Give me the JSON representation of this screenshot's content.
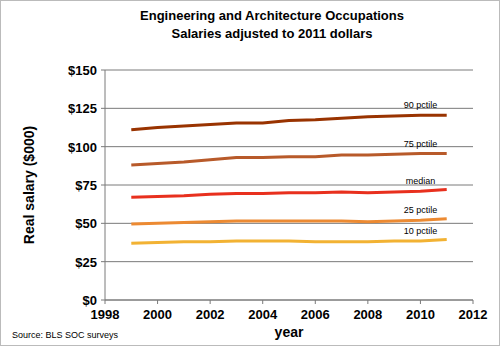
{
  "chart_data": {
    "type": "line",
    "title": [
      "Engineering and Architecture Occupations",
      "Salaries adjusted to 2011 dollars"
    ],
    "x_label": "year",
    "y_label": "Real salary ($000)",
    "annotations": [
      "Source: BLS SOC surveys"
    ],
    "x": [
      1999,
      2000,
      2001,
      2002,
      2003,
      2004,
      2005,
      2006,
      2007,
      2008,
      2009,
      2010,
      2011
    ],
    "series": [
      {
        "name": "90 pctile",
        "color": "#993300",
        "values": [
          111,
          112.5,
          113.5,
          114.5,
          115.5,
          115.5,
          117,
          117.5,
          118.5,
          119.5,
          120,
          120.5,
          120.5
        ]
      },
      {
        "name": "75 pctile",
        "color": "#b85a2a",
        "values": [
          88,
          89,
          90,
          91.5,
          93,
          93,
          93.5,
          93.5,
          94.5,
          94.5,
          95,
          95.5,
          95.5
        ]
      },
      {
        "name": "median",
        "color": "#e8301e",
        "values": [
          67,
          67.5,
          68,
          69,
          69.5,
          69.5,
          70,
          70,
          70.5,
          70,
          70.5,
          71,
          72
        ]
      },
      {
        "name": "25 pctile",
        "color": "#ec8a32",
        "values": [
          49.5,
          50,
          50.5,
          51,
          51.5,
          51.5,
          51.5,
          51.5,
          51.5,
          51,
          51.5,
          52,
          53
        ]
      },
      {
        "name": "10 pctile",
        "color": "#f2b233",
        "values": [
          37,
          37.5,
          38,
          38,
          38.5,
          38.5,
          38.5,
          38,
          38,
          38,
          38.5,
          38.5,
          39.5
        ]
      }
    ],
    "xlim": [
      1998,
      2012
    ],
    "xticks": [
      1998,
      2000,
      2002,
      2004,
      2006,
      2008,
      2010,
      2012
    ],
    "ylim": [
      0,
      150
    ],
    "yticks": [
      {
        "value": 0,
        "label": "$0"
      },
      {
        "value": 25,
        "label": "$25"
      },
      {
        "value": 50,
        "label": "$50"
      },
      {
        "value": 75,
        "label": "$75"
      },
      {
        "value": 100,
        "label": "$100"
      },
      {
        "value": 125,
        "label": "$125"
      },
      {
        "value": 150,
        "label": "$150"
      }
    ],
    "grid": true
  }
}
